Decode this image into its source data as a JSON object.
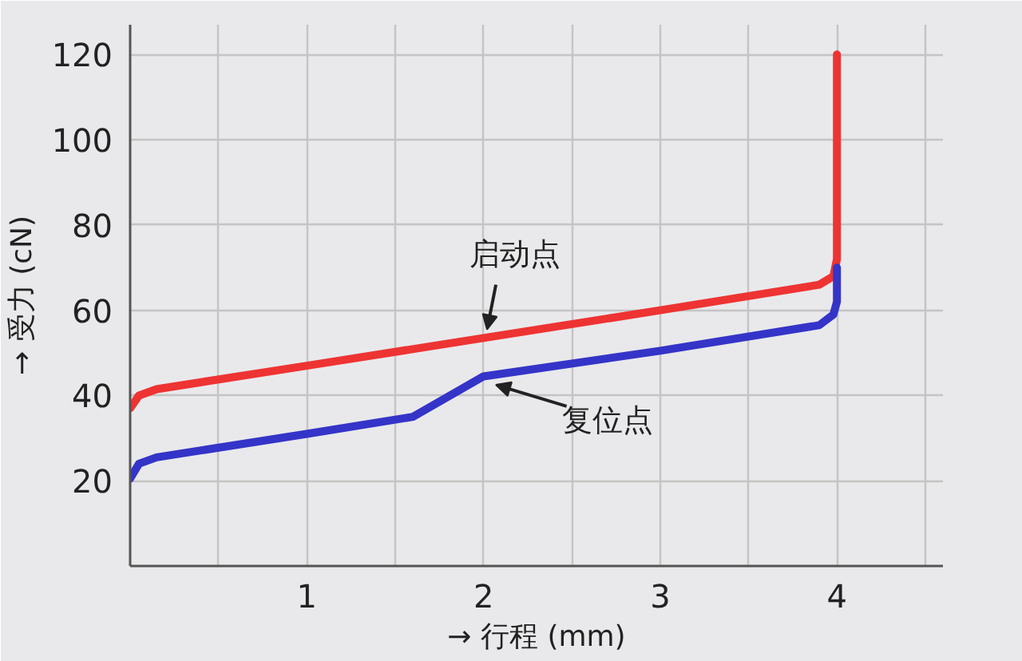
{
  "chart_data": {
    "type": "line",
    "xlabel": "→ 行程 (mm)",
    "ylabel": "→ 受力 (cN)",
    "xlim": [
      0,
      4.6
    ],
    "ylim": [
      0,
      127
    ],
    "xticks": [
      {
        "value": 0,
        "label": null
      },
      {
        "value": 0.5,
        "label": null
      },
      1,
      {
        "value": 1.5,
        "label": null
      },
      2,
      {
        "value": 2.5,
        "label": null
      },
      3,
      {
        "value": 3.5,
        "label": null
      },
      4,
      {
        "value": 4.5,
        "label": null
      }
    ],
    "yticks": [
      {
        "value": 0,
        "label": null
      },
      20,
      40,
      60,
      80,
      100,
      120
    ],
    "grid": true,
    "line_style": "solid",
    "marker": "none",
    "series": [
      {
        "color": "#ee3333",
        "x": [
          0,
          0.05,
          0.15,
          1,
          2,
          3,
          3.9,
          3.98,
          4,
          4
        ],
        "values": [
          37,
          40,
          41.5,
          47,
          53.5,
          60,
          66,
          68,
          72,
          120
        ]
      },
      {
        "color": "#3434c8",
        "x": [
          0,
          0.05,
          0.15,
          1,
          1.6,
          2,
          3,
          3.9,
          3.98,
          4,
          4
        ],
        "values": [
          20.5,
          24,
          25.5,
          31,
          35,
          44.5,
          50.5,
          56.5,
          59,
          62,
          70
        ]
      }
    ],
    "annotations": [
      {
        "text": "启动点",
        "x": 2,
        "y": 54
      },
      {
        "text": "复位点",
        "x": 2.05,
        "y": 44
      }
    ]
  }
}
